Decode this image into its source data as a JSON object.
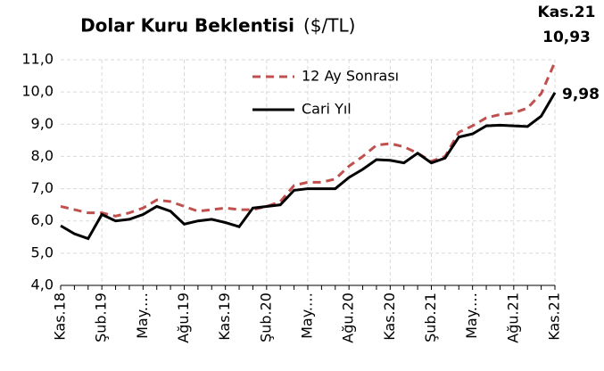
{
  "chart_data": {
    "type": "line",
    "title": "Dolar Kuru Beklentisi",
    "subtitle": "($/TL)",
    "categories": [
      "Kas.18",
      null,
      null,
      "Şub.19",
      null,
      null,
      "May.…",
      null,
      null,
      "Ağu.19",
      null,
      null,
      "Kas.19",
      null,
      null,
      "Şub.20",
      null,
      null,
      "May.…",
      null,
      null,
      "Ağu.20",
      null,
      null,
      "Kas.20",
      null,
      null,
      "Şub.21",
      null,
      null,
      "May.…",
      null,
      null,
      "Ağu.21",
      null,
      null,
      "Kas.21"
    ],
    "series": [
      {
        "name": "12 Ay Sonrası",
        "color": "#c0504d",
        "dashed": true,
        "values": [
          6.45,
          6.35,
          6.25,
          6.25,
          6.15,
          6.25,
          6.4,
          6.65,
          6.6,
          6.45,
          6.3,
          6.35,
          6.4,
          6.35,
          6.35,
          6.45,
          6.6,
          7.1,
          7.2,
          7.2,
          7.3,
          7.7,
          8.0,
          8.35,
          8.4,
          8.3,
          8.1,
          7.85,
          8.0,
          8.75,
          8.95,
          9.2,
          9.3,
          9.35,
          9.5,
          9.95,
          10.93
        ],
        "value_labels": [
          null,
          null,
          null,
          null,
          null,
          null,
          null,
          null,
          null,
          null,
          null,
          null,
          null,
          null,
          null,
          null,
          null,
          null,
          null,
          null,
          null,
          null,
          null,
          null,
          null,
          null,
          null,
          null,
          null,
          null,
          null,
          null,
          null,
          null,
          null,
          null,
          "10,93"
        ]
      },
      {
        "name": "Cari Yıl",
        "color": "#000000",
        "dashed": false,
        "values": [
          5.85,
          5.6,
          5.45,
          6.2,
          6.0,
          6.05,
          6.2,
          6.45,
          6.3,
          5.9,
          6.0,
          6.05,
          5.95,
          5.82,
          6.4,
          6.45,
          6.5,
          6.95,
          7.0,
          7.0,
          7.0,
          7.35,
          7.6,
          7.9,
          7.88,
          7.8,
          8.1,
          7.8,
          7.95,
          8.6,
          8.7,
          8.95,
          8.97,
          8.95,
          8.93,
          9.25,
          9.98
        ],
        "value_labels": [
          null,
          null,
          null,
          null,
          null,
          null,
          null,
          null,
          null,
          null,
          null,
          null,
          null,
          null,
          null,
          null,
          null,
          null,
          null,
          null,
          null,
          null,
          null,
          null,
          null,
          null,
          null,
          null,
          null,
          null,
          null,
          null,
          null,
          null,
          null,
          null,
          "9,98"
        ]
      }
    ],
    "ylim": [
      4,
      11
    ],
    "yticks": [
      {
        "value": 4,
        "label": "4,0"
      },
      {
        "value": 5,
        "label": "5,0"
      },
      {
        "value": 6,
        "label": "6,0"
      },
      {
        "value": 7,
        "label": "7,0"
      },
      {
        "value": 8,
        "label": "8,0"
      },
      {
        "value": 9,
        "label": "9,0"
      },
      {
        "value": 10,
        "label": "10,0"
      },
      {
        "value": 11,
        "label": "11,0"
      }
    ],
    "grid": true
  }
}
